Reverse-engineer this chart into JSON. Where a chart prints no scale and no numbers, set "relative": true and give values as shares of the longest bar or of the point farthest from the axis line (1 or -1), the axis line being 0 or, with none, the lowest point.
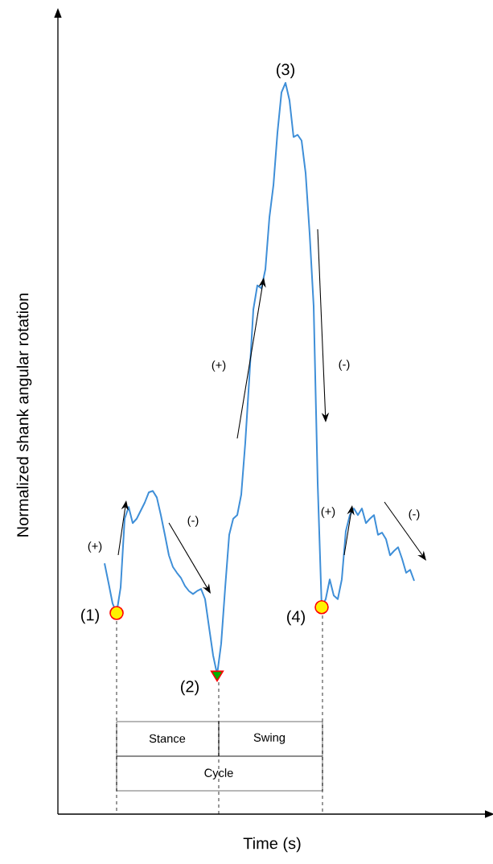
{
  "chart_data": {
    "type": "line",
    "relative": true,
    "xlabel": "Time (s)",
    "ylabel": "Normalized shank angular rotation",
    "categories": [
      null,
      null,
      null,
      null,
      null,
      null,
      null,
      null,
      null,
      null,
      null,
      null,
      null,
      null,
      null,
      null,
      null,
      null,
      null,
      null,
      null,
      null,
      null,
      null,
      null,
      null,
      null,
      null,
      null,
      null,
      null,
      null,
      null,
      null,
      null,
      null,
      null,
      null,
      null,
      null,
      null,
      null,
      null,
      null,
      null,
      null,
      null,
      null,
      null,
      null,
      null,
      null,
      null,
      null,
      null,
      null,
      null,
      null,
      null,
      null,
      null,
      null,
      null,
      null,
      null,
      null,
      null,
      null,
      null,
      null,
      null,
      null,
      null,
      null,
      null,
      null,
      null,
      null
    ],
    "series": [
      {
        "color": "#3f8fd8",
        "values": [
          0.343,
          0.316,
          0.288,
          0.275,
          0.31,
          0.404,
          0.42,
          0.398,
          0.404,
          0.415,
          0.426,
          0.44,
          0.442,
          0.433,
          0.409,
          0.382,
          0.354,
          0.338,
          0.33,
          0.323,
          0.312,
          0.305,
          0.301,
          0.305,
          0.308,
          0.294,
          0.255,
          0.217,
          0.191,
          0.233,
          0.31,
          0.382,
          0.404,
          0.409,
          0.437,
          0.508,
          0.596,
          0.69,
          0.723,
          0.719,
          0.745,
          0.816,
          0.86,
          0.932,
          0.987,
          1.0,
          0.976,
          0.926,
          0.929,
          0.921,
          0.877,
          0.794,
          0.695,
          0.453,
          0.283,
          0.294,
          0.321,
          0.299,
          0.294,
          0.321,
          0.387,
          0.409,
          0.418,
          0.409,
          0.418,
          0.398,
          0.404,
          0.409,
          0.382,
          0.385,
          0.376,
          0.354,
          0.36,
          0.365,
          0.349,
          0.33,
          0.334,
          0.319
        ]
      }
    ],
    "annotations": [
      "(1)",
      "(2)",
      "(3)",
      "(4)",
      "(+)",
      "(-)",
      "(+)",
      "(-)",
      "(+)",
      "(-)",
      "Stance",
      "Swing",
      "Cycle"
    ]
  }
}
